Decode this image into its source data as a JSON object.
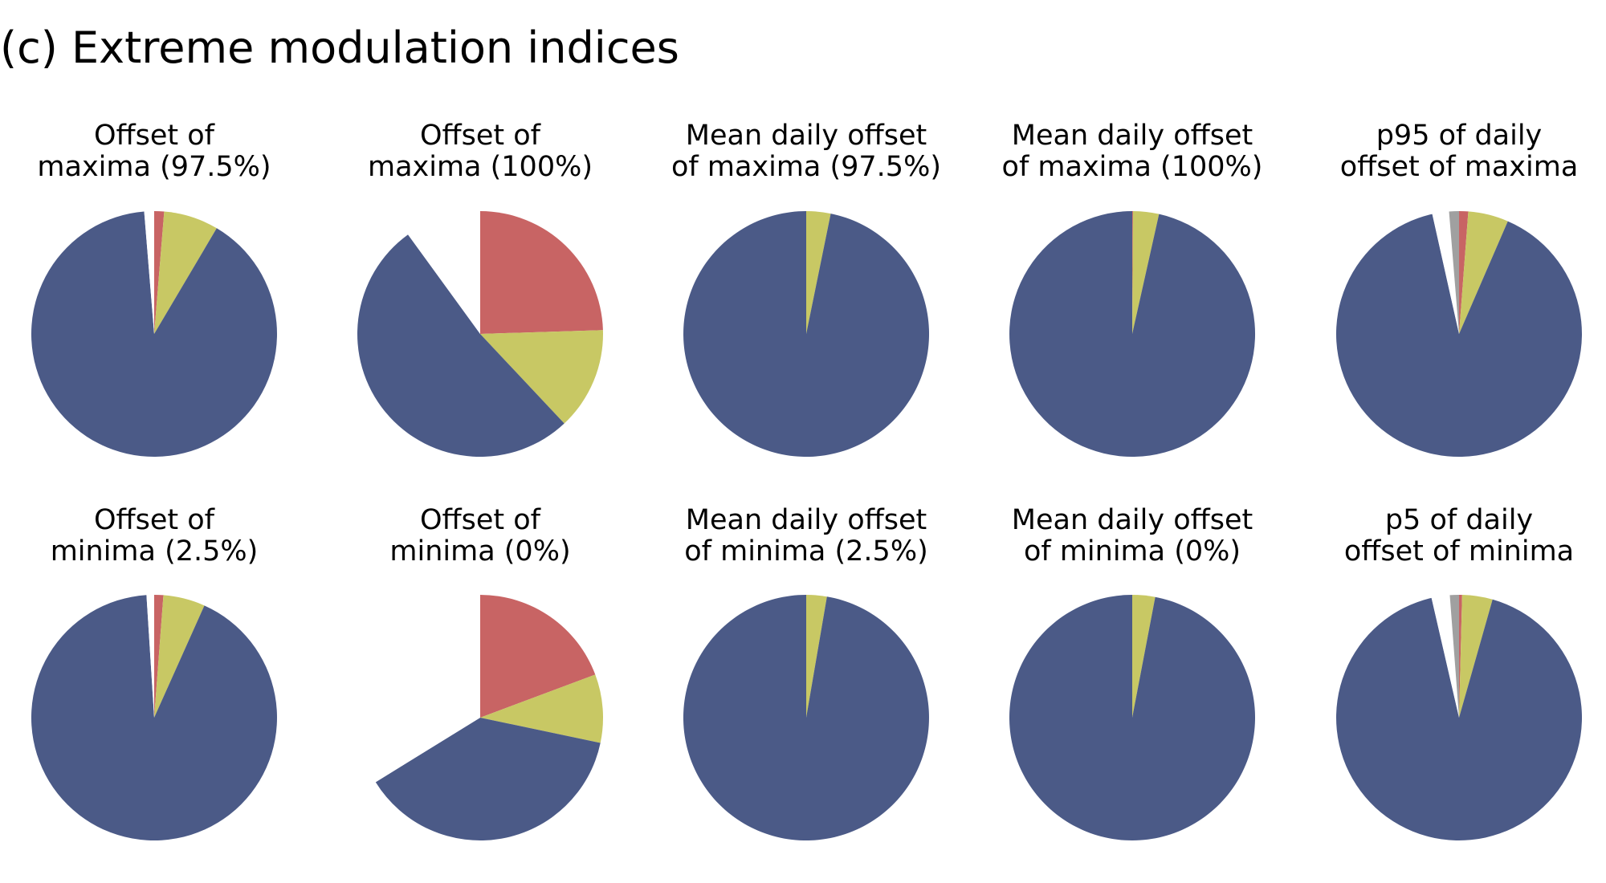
{
  "figure_title": "(c) Extreme modulation indices",
  "colors": {
    "blue": "#4b5a87",
    "red": "#c86464",
    "yellow": "#c8c864",
    "gray": "#a0a0a0",
    "empty": "#ffffff"
  },
  "chart_data": [
    {
      "type": "pie",
      "title": [
        "Offset of",
        "maxima (97.5%)"
      ],
      "start_angle": 90,
      "direction": "clockwise",
      "slices": [
        {
          "color": "red",
          "value": 1.3
        },
        {
          "color": "yellow",
          "value": 7.2
        },
        {
          "color": "blue",
          "value": 90.2
        },
        {
          "color": "empty",
          "value": 1.3
        }
      ]
    },
    {
      "type": "pie",
      "title": [
        "Offset of",
        "maxima (100%)"
      ],
      "start_angle": 90,
      "direction": "clockwise",
      "slices": [
        {
          "color": "red",
          "value": 24.5
        },
        {
          "color": "yellow",
          "value": 13.5
        },
        {
          "color": "blue",
          "value": 52.0
        },
        {
          "color": "empty",
          "value": 10.0
        }
      ]
    },
    {
      "type": "pie",
      "title": [
        "Mean daily offset",
        "of maxima (97.5%)"
      ],
      "start_angle": 90,
      "direction": "clockwise",
      "slices": [
        {
          "color": "yellow",
          "value": 3.2
        },
        {
          "color": "blue",
          "value": 96.8
        }
      ]
    },
    {
      "type": "pie",
      "title": [
        "Mean daily offset",
        "of maxima (100%)"
      ],
      "start_angle": 90,
      "direction": "clockwise",
      "slices": [
        {
          "color": "red",
          "value": 0.1
        },
        {
          "color": "yellow",
          "value": 3.4
        },
        {
          "color": "blue",
          "value": 96.5
        }
      ]
    },
    {
      "type": "pie",
      "title": [
        "p95 of daily",
        "offset of maxima"
      ],
      "start_angle": 90,
      "direction": "clockwise",
      "slices": [
        {
          "color": "red",
          "value": 1.2
        },
        {
          "color": "yellow",
          "value": 5.3
        },
        {
          "color": "blue",
          "value": 90.0
        },
        {
          "color": "empty",
          "value": 2.2
        },
        {
          "color": "gray",
          "value": 1.3
        }
      ]
    },
    {
      "type": "pie",
      "title": [
        "Offset of",
        "minima (2.5%)"
      ],
      "start_angle": 90,
      "direction": "clockwise",
      "slices": [
        {
          "color": "red",
          "value": 1.2
        },
        {
          "color": "yellow",
          "value": 5.5
        },
        {
          "color": "blue",
          "value": 92.3
        },
        {
          "color": "empty",
          "value": 1.0
        }
      ]
    },
    {
      "type": "pie",
      "title": [
        "Offset of",
        "minima (0%)"
      ],
      "start_angle": 90,
      "direction": "clockwise",
      "slices": [
        {
          "color": "red",
          "value": 19.3
        },
        {
          "color": "yellow",
          "value": 9.0
        },
        {
          "color": "blue",
          "value": 37.9
        },
        {
          "color": "empty",
          "value": 33.8
        }
      ]
    },
    {
      "type": "pie",
      "title": [
        "Mean daily offset",
        "of minima (2.5%)"
      ],
      "start_angle": 90,
      "direction": "clockwise",
      "slices": [
        {
          "color": "yellow",
          "value": 2.7
        },
        {
          "color": "blue",
          "value": 97.3
        }
      ]
    },
    {
      "type": "pie",
      "title": [
        "Mean daily offset",
        "of minima (0%)"
      ],
      "start_angle": 90,
      "direction": "clockwise",
      "slices": [
        {
          "color": "yellow",
          "value": 3.0
        },
        {
          "color": "blue",
          "value": 97.0
        }
      ]
    },
    {
      "type": "pie",
      "title": [
        "p5 of daily",
        "offset of minima"
      ],
      "start_angle": 90,
      "direction": "clockwise",
      "slices": [
        {
          "color": "red",
          "value": 0.4
        },
        {
          "color": "yellow",
          "value": 4.0
        },
        {
          "color": "blue",
          "value": 92.0
        },
        {
          "color": "empty",
          "value": 2.4
        },
        {
          "color": "gray",
          "value": 1.2
        }
      ]
    }
  ]
}
